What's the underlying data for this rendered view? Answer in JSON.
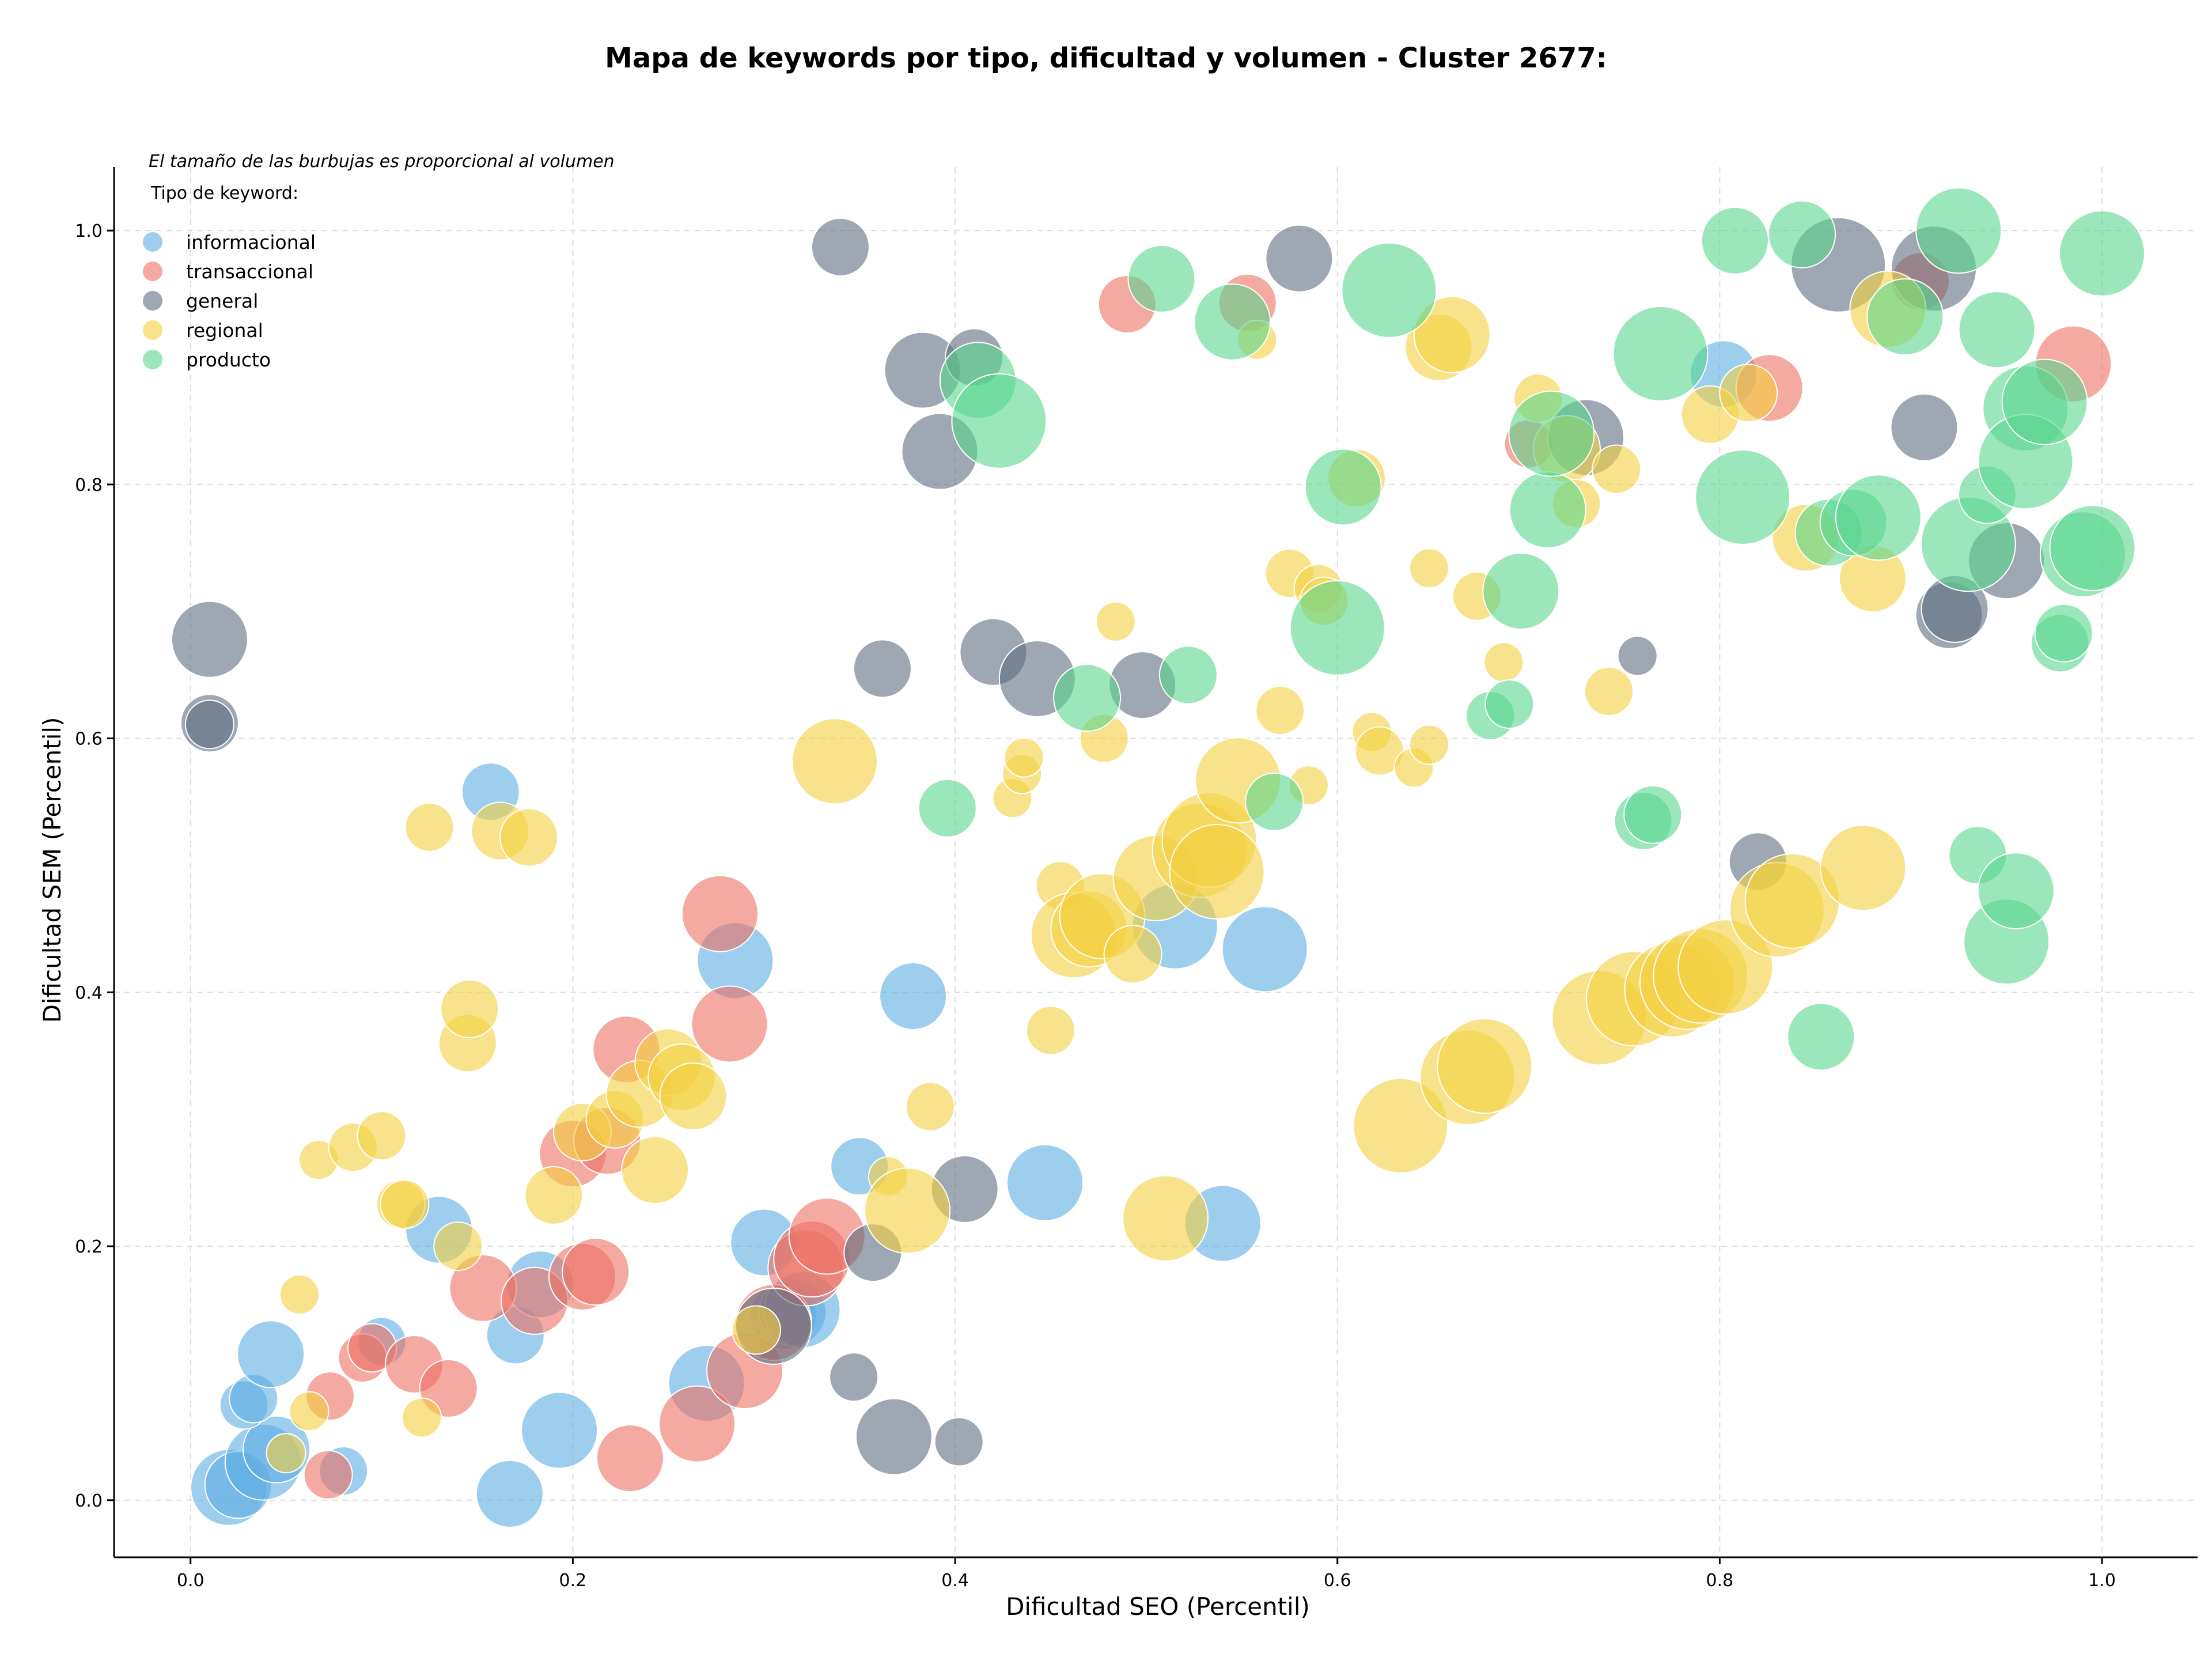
{
  "chart_data": {
    "type": "scatter",
    "title": "Mapa de keywords por tipo, dificultad y volumen - Cluster 2677:",
    "xlabel": "Dificultad SEO (Percentil)",
    "ylabel": "Dificultad SEM (Percentil)",
    "xlim": [
      -0.04,
      1.05
    ],
    "ylim": [
      -0.045,
      1.05
    ],
    "xticks": [
      0.0,
      0.2,
      0.4,
      0.6,
      0.8,
      1.0
    ],
    "yticks": [
      0.0,
      0.2,
      0.4,
      0.6,
      0.8,
      1.0
    ],
    "tick_labels_x": [
      "0.0",
      "0.2",
      "0.4",
      "0.6",
      "0.8",
      "1.0"
    ],
    "tick_labels_y": [
      "0.0",
      "0.2",
      "0.4",
      "0.6",
      "0.8",
      "1.0"
    ],
    "grid": true,
    "legend_note": "El tamaño de las burbujas es proporcional al volumen",
    "legend_title": "Tipo de keyword:",
    "legend_position": "top-left",
    "bubble_size_meaning": "relative volume",
    "series": [
      {
        "name": "informacional",
        "color": "#5dade2",
        "points": [
          [
            0.02,
            0.01,
            6
          ],
          [
            0.025,
            0.012,
            5
          ],
          [
            0.038,
            0.03,
            6
          ],
          [
            0.045,
            0.04,
            5
          ],
          [
            0.028,
            0.075,
            3
          ],
          [
            0.033,
            0.08,
            3
          ],
          [
            0.042,
            0.115,
            5
          ],
          [
            0.08,
            0.023,
            3
          ],
          [
            0.1,
            0.125,
            3
          ],
          [
            0.13,
            0.213,
            5
          ],
          [
            0.157,
            0.558,
            4
          ],
          [
            0.17,
            0.13,
            4
          ],
          [
            0.167,
            0.005,
            5
          ],
          [
            0.183,
            0.17,
            5
          ],
          [
            0.193,
            0.055,
            6
          ],
          [
            0.27,
            0.092,
            6
          ],
          [
            0.285,
            0.425,
            6
          ],
          [
            0.3,
            0.203,
            5
          ],
          [
            0.31,
            0.145,
            5
          ],
          [
            0.315,
            0.148,
            5
          ],
          [
            0.32,
            0.15,
            6
          ],
          [
            0.35,
            0.263,
            4
          ],
          [
            0.378,
            0.397,
            5
          ],
          [
            0.447,
            0.25,
            6
          ],
          [
            0.515,
            0.452,
            7
          ],
          [
            0.54,
            0.218,
            6
          ],
          [
            0.562,
            0.434,
            7
          ],
          [
            0.802,
            0.887,
            5
          ]
        ]
      },
      {
        "name": "transaccional",
        "color": "#ec7063",
        "points": [
          [
            0.072,
            0.02,
            3
          ],
          [
            0.073,
            0.082,
            3
          ],
          [
            0.09,
            0.112,
            3
          ],
          [
            0.095,
            0.12,
            3
          ],
          [
            0.117,
            0.107,
            4
          ],
          [
            0.135,
            0.088,
            4
          ],
          [
            0.153,
            0.167,
            5
          ],
          [
            0.18,
            0.157,
            5
          ],
          [
            0.2,
            0.273,
            5
          ],
          [
            0.205,
            0.176,
            5
          ],
          [
            0.212,
            0.18,
            5
          ],
          [
            0.218,
            0.283,
            5
          ],
          [
            0.228,
            0.355,
            5
          ],
          [
            0.23,
            0.033,
            5
          ],
          [
            0.265,
            0.06,
            6
          ],
          [
            0.277,
            0.462,
            6
          ],
          [
            0.282,
            0.375,
            6
          ],
          [
            0.29,
            0.102,
            6
          ],
          [
            0.305,
            0.14,
            6
          ],
          [
            0.322,
            0.183,
            6
          ],
          [
            0.325,
            0.19,
            6
          ],
          [
            0.333,
            0.208,
            6
          ],
          [
            0.49,
            0.942,
            4
          ],
          [
            0.553,
            0.943,
            4
          ],
          [
            0.7,
            0.832,
            3
          ],
          [
            0.826,
            0.876,
            5
          ],
          [
            0.905,
            0.96,
            4
          ],
          [
            0.985,
            0.895,
            6
          ]
        ]
      },
      {
        "name": "general",
        "color": "#5d6d7e",
        "points": [
          [
            0.01,
            0.678,
            6
          ],
          [
            0.01,
            0.612,
            4
          ],
          [
            0.01,
            0.611,
            3
          ],
          [
            0.34,
            0.987,
            4
          ],
          [
            0.305,
            0.137,
            6
          ],
          [
            0.347,
            0.097,
            3
          ],
          [
            0.357,
            0.195,
            4
          ],
          [
            0.362,
            0.655,
            4
          ],
          [
            0.368,
            0.05,
            6
          ],
          [
            0.383,
            0.89,
            6
          ],
          [
            0.392,
            0.826,
            6
          ],
          [
            0.402,
            0.046,
            3
          ],
          [
            0.405,
            0.245,
            5
          ],
          [
            0.41,
            0.9,
            4
          ],
          [
            0.42,
            0.668,
            5
          ],
          [
            0.443,
            0.647,
            6
          ],
          [
            0.498,
            0.642,
            5
          ],
          [
            0.58,
            0.978,
            5
          ],
          [
            0.73,
            0.837,
            6
          ],
          [
            0.757,
            0.665,
            2
          ],
          [
            0.82,
            0.503,
            4
          ],
          [
            0.862,
            0.973,
            8
          ],
          [
            0.907,
            0.845,
            5
          ],
          [
            0.912,
            0.97,
            7
          ],
          [
            0.92,
            0.697,
            5
          ],
          [
            0.923,
            0.702,
            5
          ],
          [
            0.95,
            0.74,
            6
          ]
        ]
      },
      {
        "name": "regional",
        "color": "#f4d03f",
        "points": [
          [
            0.05,
            0.037,
            2
          ],
          [
            0.057,
            0.162,
            2
          ],
          [
            0.062,
            0.07,
            2
          ],
          [
            0.067,
            0.268,
            2
          ],
          [
            0.085,
            0.278,
            3
          ],
          [
            0.1,
            0.287,
            3
          ],
          [
            0.11,
            0.233,
            3
          ],
          [
            0.112,
            0.233,
            3
          ],
          [
            0.121,
            0.065,
            2
          ],
          [
            0.125,
            0.53,
            3
          ],
          [
            0.14,
            0.2,
            3
          ],
          [
            0.145,
            0.36,
            4
          ],
          [
            0.146,
            0.387,
            4
          ],
          [
            0.162,
            0.527,
            4
          ],
          [
            0.177,
            0.522,
            4
          ],
          [
            0.19,
            0.24,
            4
          ],
          [
            0.205,
            0.29,
            4
          ],
          [
            0.222,
            0.3,
            4
          ],
          [
            0.235,
            0.32,
            5
          ],
          [
            0.243,
            0.26,
            5
          ],
          [
            0.25,
            0.345,
            5
          ],
          [
            0.257,
            0.333,
            5
          ],
          [
            0.263,
            0.318,
            5
          ],
          [
            0.296,
            0.134,
            3
          ],
          [
            0.337,
            0.582,
            7
          ],
          [
            0.365,
            0.255,
            2
          ],
          [
            0.375,
            0.228,
            7
          ],
          [
            0.387,
            0.31,
            3
          ],
          [
            0.43,
            0.553,
            2
          ],
          [
            0.435,
            0.572,
            2
          ],
          [
            0.436,
            0.585,
            2
          ],
          [
            0.45,
            0.37,
            3
          ],
          [
            0.455,
            0.484,
            3
          ],
          [
            0.462,
            0.445,
            7
          ],
          [
            0.47,
            0.45,
            6
          ],
          [
            0.477,
            0.46,
            7
          ],
          [
            0.478,
            0.6,
            3
          ],
          [
            0.484,
            0.692,
            2
          ],
          [
            0.493,
            0.43,
            4
          ],
          [
            0.505,
            0.49,
            7
          ],
          [
            0.51,
            0.222,
            7
          ],
          [
            0.528,
            0.512,
            8
          ],
          [
            0.533,
            0.52,
            8
          ],
          [
            0.537,
            0.495,
            8
          ],
          [
            0.548,
            0.567,
            7
          ],
          [
            0.558,
            0.914,
            2
          ],
          [
            0.57,
            0.622,
            3
          ],
          [
            0.575,
            0.73,
            3
          ],
          [
            0.585,
            0.563,
            2
          ],
          [
            0.59,
            0.718,
            3
          ],
          [
            0.593,
            0.708,
            3
          ],
          [
            0.61,
            0.805,
            4
          ],
          [
            0.618,
            0.605,
            2
          ],
          [
            0.622,
            0.59,
            3
          ],
          [
            0.633,
            0.295,
            8
          ],
          [
            0.64,
            0.577,
            2
          ],
          [
            0.648,
            0.734,
            2
          ],
          [
            0.648,
            0.595,
            2
          ],
          [
            0.653,
            0.908,
            5
          ],
          [
            0.66,
            0.918,
            6
          ],
          [
            0.668,
            0.333,
            8
          ],
          [
            0.673,
            0.712,
            3
          ],
          [
            0.677,
            0.342,
            8
          ],
          [
            0.687,
            0.66,
            2
          ],
          [
            0.705,
            0.868,
            3
          ],
          [
            0.72,
            0.828,
            5
          ],
          [
            0.725,
            0.785,
            3
          ],
          [
            0.737,
            0.38,
            8
          ],
          [
            0.742,
            0.637,
            3
          ],
          [
            0.746,
            0.812,
            3
          ],
          [
            0.755,
            0.395,
            8
          ],
          [
            0.775,
            0.402,
            8
          ],
          [
            0.783,
            0.408,
            8
          ],
          [
            0.79,
            0.413,
            8
          ],
          [
            0.795,
            0.855,
            4
          ],
          [
            0.803,
            0.42,
            8
          ],
          [
            0.815,
            0.872,
            4
          ],
          [
            0.83,
            0.465,
            8
          ],
          [
            0.838,
            0.472,
            8
          ],
          [
            0.845,
            0.758,
            5
          ],
          [
            0.875,
            0.498,
            7
          ],
          [
            0.88,
            0.726,
            5
          ],
          [
            0.888,
            0.938,
            6
          ]
        ]
      },
      {
        "name": "producto",
        "color": "#58d68d",
        "points": [
          [
            0.396,
            0.545,
            4
          ],
          [
            0.412,
            0.882,
            6
          ],
          [
            0.423,
            0.85,
            8
          ],
          [
            0.469,
            0.632,
            5
          ],
          [
            0.508,
            0.962,
            5
          ],
          [
            0.522,
            0.65,
            4
          ],
          [
            0.545,
            0.928,
            6
          ],
          [
            0.567,
            0.55,
            4
          ],
          [
            0.6,
            0.687,
            8
          ],
          [
            0.603,
            0.798,
            6
          ],
          [
            0.627,
            0.953,
            8
          ],
          [
            0.68,
            0.618,
            3
          ],
          [
            0.69,
            0.627,
            3
          ],
          [
            0.696,
            0.716,
            6
          ],
          [
            0.71,
            0.78,
            6
          ],
          [
            0.712,
            0.84,
            7
          ],
          [
            0.76,
            0.535,
            4
          ],
          [
            0.765,
            0.54,
            4
          ],
          [
            0.769,
            0.903,
            8
          ],
          [
            0.808,
            0.992,
            5
          ],
          [
            0.812,
            0.79,
            8
          ],
          [
            0.843,
            0.997,
            5
          ],
          [
            0.853,
            0.365,
            5
          ],
          [
            0.857,
            0.762,
            5
          ],
          [
            0.87,
            0.77,
            5
          ],
          [
            0.883,
            0.774,
            7
          ],
          [
            0.897,
            0.932,
            6
          ],
          [
            0.925,
            1.0,
            7
          ],
          [
            0.93,
            0.753,
            8
          ],
          [
            0.935,
            0.508,
            4
          ],
          [
            0.94,
            0.792,
            4
          ],
          [
            0.945,
            0.922,
            6
          ],
          [
            0.95,
            0.44,
            7
          ],
          [
            0.955,
            0.48,
            6
          ],
          [
            0.96,
            0.86,
            7
          ],
          [
            0.96,
            0.818,
            8
          ],
          [
            0.97,
            0.865,
            7
          ],
          [
            0.978,
            0.675,
            4
          ],
          [
            0.98,
            0.683,
            4
          ],
          [
            0.99,
            0.745,
            7
          ],
          [
            0.995,
            0.75,
            7
          ],
          [
            1.0,
            0.982,
            7
          ]
        ]
      }
    ]
  }
}
